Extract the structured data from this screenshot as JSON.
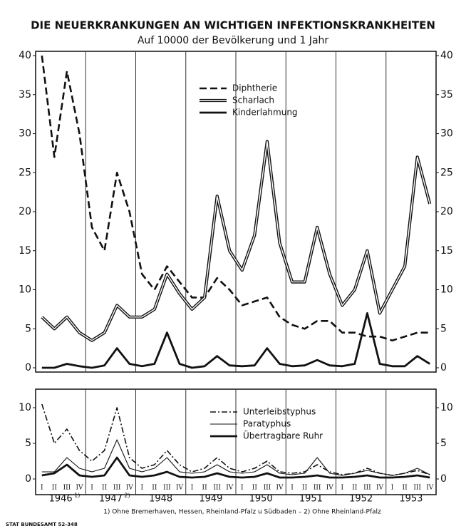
{
  "chart_data": [
    {
      "type": "line",
      "title": "DIE NEUERKRANKUNGEN AN WICHTIGEN INFEKTIONSKRANKHEITEN",
      "subtitle": "Auf 10000 der Bevölkerung und 1 Jahr",
      "ylim": [
        0,
        40
      ],
      "yticks": [
        0,
        5,
        10,
        15,
        20,
        25,
        30,
        35,
        40
      ],
      "legend": "top-center",
      "series": [
        {
          "name": "Diphtherie",
          "color": "#111111",
          "style": "dashed",
          "values": [
            40,
            27,
            38,
            30,
            18,
            15,
            25,
            20,
            12,
            10,
            13,
            11,
            9,
            9,
            11.5,
            10,
            8,
            8.5,
            9,
            6.5,
            5.5,
            5,
            6,
            6,
            4.5,
            4.5,
            4,
            4,
            3.5,
            4,
            4.5,
            4.5
          ]
        },
        {
          "name": "Scharlach",
          "color": "#111111",
          "style": "double",
          "values": [
            6.5,
            5,
            6.5,
            4.5,
            3.5,
            4.5,
            8,
            6.5,
            6.5,
            7.5,
            12,
            9.5,
            7.5,
            9,
            22,
            15,
            12.5,
            17,
            29,
            16,
            11,
            11,
            18,
            12,
            8,
            10,
            15,
            7,
            10,
            13,
            27,
            21
          ]
        },
        {
          "name": "Kinderlahmung",
          "color": "#111111",
          "style": "thick",
          "values": [
            0,
            0,
            0.5,
            0.2,
            0,
            0.3,
            2.5,
            0.5,
            0.2,
            0.5,
            4.5,
            0.5,
            0,
            0.2,
            1.5,
            0.3,
            0.2,
            0.3,
            2.5,
            0.5,
            0.2,
            0.3,
            1,
            0.3,
            0.2,
            0.5,
            7,
            0.5,
            0.2,
            0.2,
            1.5,
            0.5
          ]
        }
      ]
    },
    {
      "type": "line",
      "ylim": [
        0,
        11
      ],
      "yticks": [
        0,
        5,
        10
      ],
      "legend": "top-center",
      "categories": [
        "I",
        "II",
        "III",
        "IV",
        "I",
        "II",
        "III",
        "IV",
        "I",
        "II",
        "III",
        "IV",
        "I",
        "II",
        "III",
        "IV",
        "I",
        "II",
        "III",
        "IV",
        "I",
        "II",
        "III",
        "IV",
        "I",
        "II",
        "III",
        "IV",
        "I",
        "II",
        "III",
        "IV"
      ],
      "x_groups": [
        "1946",
        "1947",
        "1948",
        "1949",
        "1950",
        "1951",
        "1952",
        "1953"
      ],
      "x_group_notes": [
        "1)",
        "2)",
        null,
        null,
        null,
        null,
        null,
        null
      ],
      "footnote": "1) Ohne Bremerhaven, Hessen, Rheinland-Pfalz u Südbaden –  2) Ohne Rheinland-Pfalz",
      "source": "STAT BUNDESAMT 52-348",
      "series": [
        {
          "name": "Unterleibstyphus",
          "color": "#111111",
          "style": "dashdot",
          "values": [
            10.5,
            5,
            7,
            4,
            2.5,
            4,
            10,
            3,
            1.5,
            2,
            4,
            2,
            1,
            1.5,
            3,
            1.5,
            1,
            1.5,
            2.5,
            1,
            0.8,
            1,
            2,
            1,
            0.6,
            0.8,
            1.5,
            0.8,
            0.5,
            0.8,
            1.2,
            0.6
          ]
        },
        {
          "name": "Paratyphus",
          "color": "#111111",
          "style": "thin",
          "values": [
            1,
            1,
            3,
            1.5,
            1,
            1.5,
            5.5,
            1.5,
            1,
            1.5,
            3,
            1,
            0.8,
            1,
            2,
            1,
            0.8,
            1,
            2,
            0.8,
            0.6,
            0.8,
            3,
            0.8,
            0.5,
            0.8,
            1.2,
            0.8,
            0.5,
            0.8,
            1.5,
            0.6
          ]
        },
        {
          "name": "Übertragbare Ruhr",
          "color": "#111111",
          "style": "thick",
          "values": [
            0.5,
            0.8,
            2,
            0.5,
            0.3,
            0.5,
            3,
            0.5,
            0.3,
            0.5,
            1,
            0.3,
            0.2,
            0.3,
            0.8,
            0.3,
            0.2,
            0.3,
            0.8,
            0.2,
            0.2,
            0.3,
            0.5,
            0.2,
            0.2,
            0.3,
            0.5,
            0.2,
            0.2,
            0.3,
            0.5,
            0.2
          ]
        }
      ]
    }
  ]
}
